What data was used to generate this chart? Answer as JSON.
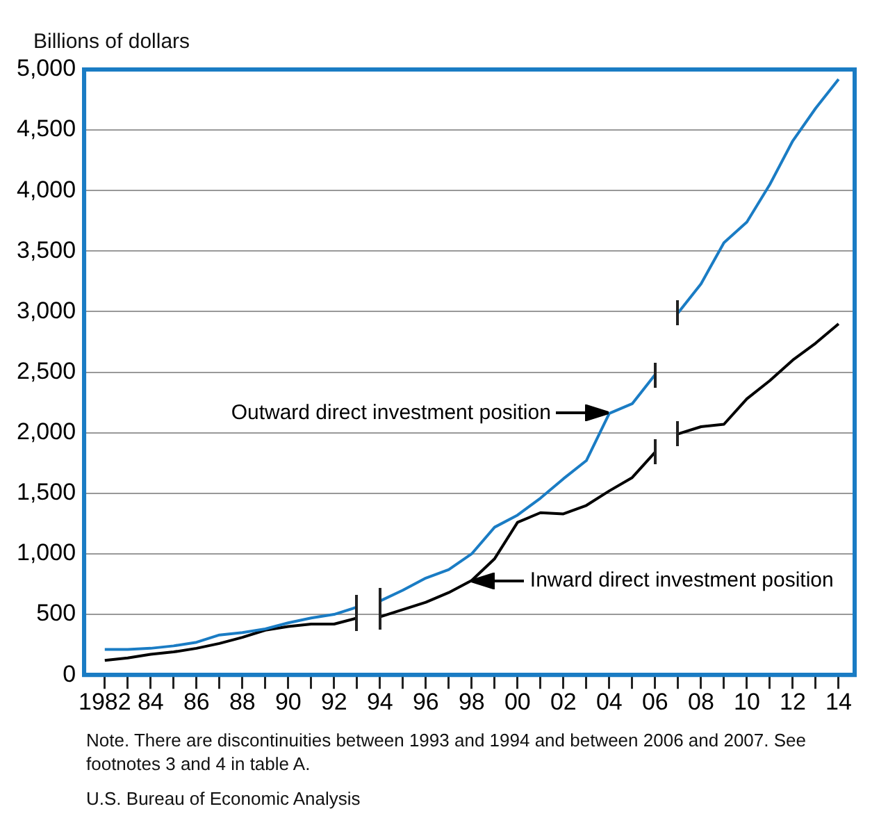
{
  "chart_data": {
    "type": "line",
    "ylabel": "Billions of dollars",
    "x": [
      1982,
      1983,
      1984,
      1985,
      1986,
      1987,
      1988,
      1989,
      1990,
      1991,
      1992,
      1993,
      1994,
      1995,
      1996,
      1997,
      1998,
      1999,
      2000,
      2001,
      2002,
      2003,
      2004,
      2005,
      2006,
      2007,
      2008,
      2009,
      2010,
      2011,
      2012,
      2013,
      2014
    ],
    "series": [
      {
        "color": "#1a7cc4",
        "values": [
          210,
          210,
          220,
          240,
          270,
          330,
          350,
          380,
          430,
          470,
          500,
          560,
          null,
          null,
          null,
          null,
          null,
          null,
          null,
          null,
          null,
          null,
          null,
          null,
          null,
          null,
          null,
          null,
          null,
          null,
          null,
          null,
          null
        ]
      },
      {
        "color": "#1a7cc4",
        "values": [
          null,
          null,
          null,
          null,
          null,
          null,
          null,
          null,
          null,
          null,
          null,
          null,
          610,
          700,
          800,
          870,
          1000,
          1220,
          1320,
          1460,
          1620,
          1770,
          2160,
          2240,
          2480,
          null,
          null,
          null,
          null,
          null,
          null,
          null,
          null
        ]
      },
      {
        "color": "#1a7cc4",
        "values": [
          null,
          null,
          null,
          null,
          null,
          null,
          null,
          null,
          null,
          null,
          null,
          null,
          null,
          null,
          null,
          null,
          null,
          null,
          null,
          null,
          null,
          null,
          null,
          null,
          null,
          2990,
          3230,
          3570,
          3740,
          4050,
          4410,
          4680,
          4920
        ]
      },
      {
        "color": "#000000",
        "values": [
          120,
          140,
          170,
          190,
          220,
          260,
          310,
          370,
          400,
          420,
          420,
          470,
          null,
          null,
          null,
          null,
          null,
          null,
          null,
          null,
          null,
          null,
          null,
          null,
          null,
          null,
          null,
          null,
          null,
          null,
          null,
          null,
          null
        ]
      },
      {
        "color": "#000000",
        "values": [
          null,
          null,
          null,
          null,
          null,
          null,
          null,
          null,
          null,
          null,
          null,
          null,
          480,
          540,
          600,
          680,
          780,
          960,
          1260,
          1340,
          1330,
          1400,
          1520,
          1630,
          1840,
          null,
          null,
          null,
          null,
          null,
          null,
          null,
          null
        ]
      },
      {
        "color": "#000000",
        "values": [
          null,
          null,
          null,
          null,
          null,
          null,
          null,
          null,
          null,
          null,
          null,
          null,
          null,
          null,
          null,
          null,
          null,
          null,
          null,
          null,
          null,
          null,
          null,
          null,
          null,
          1990,
          2050,
          2070,
          2280,
          2430,
          2600,
          2740,
          2900
        ]
      }
    ],
    "xlim": [
      1981.1,
      2014.7
    ],
    "xticks": [
      {
        "value": 1982,
        "label": "1982"
      },
      {
        "value": 1983,
        "label": null
      },
      {
        "value": 1984,
        "label": "84"
      },
      {
        "value": 1985,
        "label": null
      },
      {
        "value": 1986,
        "label": "86"
      },
      {
        "value": 1987,
        "label": null
      },
      {
        "value": 1988,
        "label": "88"
      },
      {
        "value": 1989,
        "label": null
      },
      {
        "value": 1990,
        "label": "90"
      },
      {
        "value": 1991,
        "label": null
      },
      {
        "value": 1992,
        "label": "92"
      },
      {
        "value": 1993,
        "label": null
      },
      {
        "value": 1994,
        "label": "94"
      },
      {
        "value": 1995,
        "label": null
      },
      {
        "value": 1996,
        "label": "96"
      },
      {
        "value": 1997,
        "label": null
      },
      {
        "value": 1998,
        "label": "98"
      },
      {
        "value": 1999,
        "label": null
      },
      {
        "value": 2000,
        "label": "00"
      },
      {
        "value": 2001,
        "label": null
      },
      {
        "value": 2002,
        "label": "02"
      },
      {
        "value": 2003,
        "label": null
      },
      {
        "value": 2004,
        "label": "04"
      },
      {
        "value": 2005,
        "label": null
      },
      {
        "value": 2006,
        "label": "06"
      },
      {
        "value": 2007,
        "label": null
      },
      {
        "value": 2008,
        "label": "08"
      },
      {
        "value": 2009,
        "label": null
      },
      {
        "value": 2010,
        "label": "10"
      },
      {
        "value": 2011,
        "label": null
      },
      {
        "value": 2012,
        "label": "12"
      },
      {
        "value": 2013,
        "label": null
      },
      {
        "value": 2014,
        "label": "14"
      }
    ],
    "ylim": [
      0,
      5000
    ],
    "yticks": [
      0,
      500,
      {
        "value": 1000,
        "label": "1,000"
      },
      {
        "value": 1500,
        "label": "1,500"
      },
      {
        "value": 2000,
        "label": "2,000"
      },
      {
        "value": 2500,
        "label": "2,500"
      },
      {
        "value": 3000,
        "label": "3,000"
      },
      {
        "value": 3500,
        "label": "3,500"
      },
      {
        "value": 4000,
        "label": "4,000"
      },
      {
        "value": 4500,
        "label": "4,500"
      },
      {
        "value": 5000,
        "label": "5,000"
      }
    ],
    "grid": "y",
    "legend": false,
    "marker": "none",
    "line_style": "solid",
    "annotations": [
      {
        "text": "Outward direct investment position",
        "x": 2004,
        "y": 2160
      },
      {
        "text": "Inward direct investment position",
        "x": 1998,
        "y": 780
      },
      "Note. There are discontinuities between 1993 and 1994 and between 2006 and 2007.  See footnotes 3 and 4 in table A.",
      "U.S. Bureau of Economic Analysis"
    ]
  }
}
